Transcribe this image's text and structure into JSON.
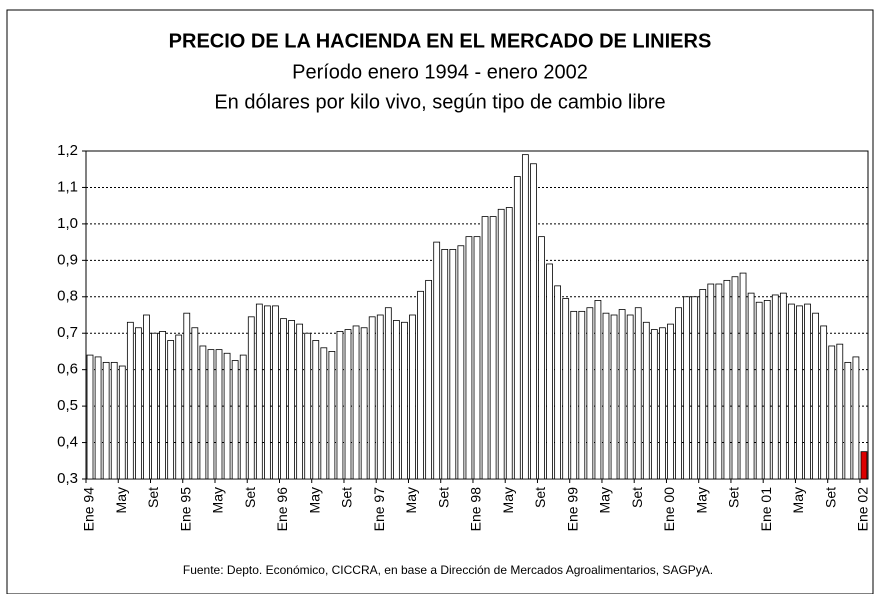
{
  "chart_data": {
    "type": "bar",
    "title": "PRECIO DE LA HACIENDA EN EL MERCADO DE LINIERS",
    "subtitle": "Período enero 1994 - enero 2002",
    "subtitle2": "En dólares por kilo vivo, según tipo de cambio libre",
    "source": "Fuente: Depto. Económico, CICCRA, en base a Dirección de Mercados Agroalimentarios, SAGPyA.",
    "categories": [
      "Ene 94",
      null,
      null,
      null,
      "May",
      null,
      null,
      null,
      "Set",
      null,
      null,
      null,
      "Ene 95",
      null,
      null,
      null,
      "May",
      null,
      null,
      null,
      "Set",
      null,
      null,
      null,
      "Ene 96",
      null,
      null,
      null,
      "May",
      null,
      null,
      null,
      "Set",
      null,
      null,
      null,
      "Ene 97",
      null,
      null,
      null,
      "May",
      null,
      null,
      null,
      "Set",
      null,
      null,
      null,
      "Ene 98",
      null,
      null,
      null,
      "May",
      null,
      null,
      null,
      "Set",
      null,
      null,
      null,
      "Ene 99",
      null,
      null,
      null,
      "May",
      null,
      null,
      null,
      "Set",
      null,
      null,
      null,
      "Ene 00",
      null,
      null,
      null,
      "May",
      null,
      null,
      null,
      "Set",
      null,
      null,
      null,
      "Ene 01",
      null,
      null,
      null,
      "May",
      null,
      null,
      null,
      "Set",
      null,
      null,
      null,
      "Ene 02"
    ],
    "values": [
      0.64,
      0.635,
      0.62,
      0.62,
      0.61,
      0.73,
      0.715,
      0.75,
      0.7,
      0.705,
      0.68,
      0.695,
      0.755,
      0.715,
      0.665,
      0.655,
      0.655,
      0.645,
      0.625,
      0.64,
      0.745,
      0.78,
      0.775,
      0.775,
      0.74,
      0.735,
      0.725,
      0.7,
      0.68,
      0.66,
      0.65,
      0.705,
      0.71,
      0.72,
      0.715,
      0.745,
      0.75,
      0.77,
      0.735,
      0.73,
      0.75,
      0.815,
      0.845,
      0.95,
      0.93,
      0.93,
      0.94,
      0.965,
      0.965,
      1.02,
      1.02,
      1.04,
      1.045,
      1.13,
      1.19,
      1.165,
      0.965,
      0.89,
      0.83,
      0.795,
      0.76,
      0.76,
      0.77,
      0.79,
      0.755,
      0.75,
      0.765,
      0.75,
      0.77,
      0.73,
      0.71,
      0.715,
      0.725,
      0.77,
      0.8,
      0.8,
      0.82,
      0.835,
      0.835,
      0.845,
      0.855,
      0.865,
      0.81,
      0.785,
      0.79,
      0.805,
      0.81,
      0.78,
      0.775,
      0.78,
      0.755,
      0.72,
      0.665,
      0.67,
      0.62,
      0.635,
      0.375
    ],
    "color": "#ffffff",
    "highlight": {
      "index": 96,
      "color": "#dd0000"
    },
    "ylim": [
      0.3,
      1.2
    ],
    "yticks": [
      {
        "value": 0.3,
        "label": "0,3"
      },
      {
        "value": 0.4,
        "label": "0,4"
      },
      {
        "value": 0.5,
        "label": "0,5"
      },
      {
        "value": 0.6,
        "label": "0,6"
      },
      {
        "value": 0.7,
        "label": "0,7"
      },
      {
        "value": 0.8,
        "label": "0,8"
      },
      {
        "value": 0.9,
        "label": "0,9"
      },
      {
        "value": 1.0,
        "label": "1,0"
      },
      {
        "value": 1.1,
        "label": "1,1"
      },
      {
        "value": 1.2,
        "label": "1,2"
      }
    ],
    "grid": true
  }
}
